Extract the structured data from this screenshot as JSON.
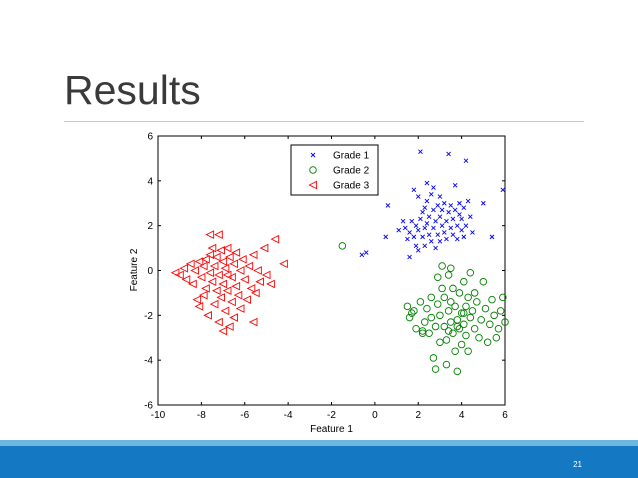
{
  "slide": {
    "title": "Results",
    "page_number": "21"
  },
  "chart_data": {
    "type": "scatter",
    "title": "",
    "xlabel": "Feature 1",
    "ylabel": "Feature 2",
    "xlim": [
      -10,
      6
    ],
    "ylim": [
      -6,
      6
    ],
    "xticks": [
      "-10",
      "-8",
      "-6",
      "-4",
      "-2",
      "0",
      "2",
      "4",
      "6"
    ],
    "yticks": [
      "-6",
      "-4",
      "-2",
      "0",
      "2",
      "4",
      "6"
    ],
    "grid": false,
    "legend_position": "top-right",
    "series": [
      {
        "name": "Grade 1",
        "marker": "x",
        "color": "#0000ff",
        "points": [
          [
            -0.6,
            0.7
          ],
          [
            -0.4,
            0.8
          ],
          [
            0.5,
            1.5
          ],
          [
            0.6,
            2.9
          ],
          [
            1.1,
            1.8
          ],
          [
            1.3,
            2.2
          ],
          [
            1.4,
            1.9
          ],
          [
            1.5,
            1.4
          ],
          [
            1.6,
            1.7
          ],
          [
            1.6,
            0.6
          ],
          [
            1.7,
            2.2
          ],
          [
            1.8,
            1.5
          ],
          [
            1.8,
            3.6
          ],
          [
            1.9,
            2.0
          ],
          [
            1.9,
            1.1
          ],
          [
            2.0,
            3.3
          ],
          [
            2.0,
            1.8
          ],
          [
            2.0,
            0.9
          ],
          [
            2.1,
            2.3
          ],
          [
            2.1,
            5.3
          ],
          [
            2.2,
            2.6
          ],
          [
            2.2,
            1.5
          ],
          [
            2.3,
            2.8
          ],
          [
            2.3,
            1.9
          ],
          [
            2.3,
            1.1
          ],
          [
            2.4,
            3.1
          ],
          [
            2.4,
            2.1
          ],
          [
            2.4,
            3.9
          ],
          [
            2.5,
            1.6
          ],
          [
            2.5,
            2.4
          ],
          [
            2.6,
            3.4
          ],
          [
            2.6,
            1.3
          ],
          [
            2.7,
            2.7
          ],
          [
            2.7,
            1.9
          ],
          [
            2.7,
            3.7
          ],
          [
            2.8,
            2.2
          ],
          [
            2.8,
            1.0
          ],
          [
            2.9,
            2.9
          ],
          [
            2.9,
            1.6
          ],
          [
            3.0,
            2.4
          ],
          [
            3.0,
            3.3
          ],
          [
            3.0,
            1.3
          ],
          [
            3.1,
            2.0
          ],
          [
            3.1,
            2.7
          ],
          [
            3.2,
            1.7
          ],
          [
            3.2,
            3.0
          ],
          [
            3.3,
            2.2
          ],
          [
            3.3,
            1.4
          ],
          [
            3.4,
            2.6
          ],
          [
            3.4,
            5.2
          ],
          [
            3.5,
            1.9
          ],
          [
            3.5,
            2.9
          ],
          [
            3.6,
            2.3
          ],
          [
            3.6,
            1.6
          ],
          [
            3.7,
            2.7
          ],
          [
            3.7,
            3.8
          ],
          [
            3.8,
            2.0
          ],
          [
            3.8,
            1.4
          ],
          [
            3.9,
            2.5
          ],
          [
            3.9,
            3.0
          ],
          [
            4.0,
            1.8
          ],
          [
            4.0,
            2.3
          ],
          [
            4.1,
            2.8
          ],
          [
            4.1,
            1.5
          ],
          [
            4.2,
            4.9
          ],
          [
            4.2,
            2.0
          ],
          [
            4.3,
            3.1
          ],
          [
            4.4,
            2.4
          ],
          [
            4.5,
            1.7
          ],
          [
            5.0,
            3.0
          ],
          [
            5.4,
            1.5
          ],
          [
            5.9,
            3.6
          ]
        ]
      },
      {
        "name": "Grade 2",
        "marker": "circle",
        "color": "#008000",
        "points": [
          [
            -1.5,
            1.1
          ],
          [
            1.5,
            -1.6
          ],
          [
            1.6,
            -2.1
          ],
          [
            1.7,
            -1.9
          ],
          [
            1.9,
            -2.6
          ],
          [
            2.1,
            -1.4
          ],
          [
            2.2,
            -2.8
          ],
          [
            2.3,
            -2.3
          ],
          [
            2.4,
            -1.7
          ],
          [
            2.5,
            -2.8
          ],
          [
            2.6,
            -2.1
          ],
          [
            2.6,
            -1.2
          ],
          [
            2.7,
            -3.9
          ],
          [
            2.8,
            -2.5
          ],
          [
            2.8,
            -4.4
          ],
          [
            2.9,
            -1.5
          ],
          [
            2.9,
            -0.3
          ],
          [
            3.0,
            -3.2
          ],
          [
            3.0,
            -2.0
          ],
          [
            3.1,
            0.2
          ],
          [
            3.1,
            -0.8
          ],
          [
            3.2,
            -2.5
          ],
          [
            3.2,
            -1.2
          ],
          [
            3.3,
            -4.2
          ],
          [
            3.3,
            -3.1
          ],
          [
            3.4,
            -1.8
          ],
          [
            3.4,
            -0.2
          ],
          [
            3.5,
            -2.3
          ],
          [
            3.5,
            -1.4
          ],
          [
            3.5,
            0.1
          ],
          [
            3.6,
            -2.8
          ],
          [
            3.6,
            -0.8
          ],
          [
            3.7,
            -3.6
          ],
          [
            3.7,
            -1.6
          ],
          [
            3.8,
            -2.2
          ],
          [
            3.8,
            -4.5
          ],
          [
            3.9,
            -1.0
          ],
          [
            3.9,
            -2.6
          ],
          [
            4.0,
            -1.9
          ],
          [
            4.0,
            -3.3
          ],
          [
            4.1,
            -0.5
          ],
          [
            4.1,
            -2.4
          ],
          [
            4.2,
            -1.6
          ],
          [
            4.2,
            -2.9
          ],
          [
            4.3,
            -3.6
          ],
          [
            4.3,
            -1.2
          ],
          [
            4.4,
            -2.1
          ],
          [
            4.4,
            -0.1
          ],
          [
            4.5,
            -1.8
          ],
          [
            4.6,
            -2.6
          ],
          [
            4.7,
            -1.4
          ],
          [
            4.8,
            -3.0
          ],
          [
            4.9,
            -2.2
          ],
          [
            5.0,
            -0.5
          ],
          [
            5.1,
            -1.7
          ],
          [
            5.2,
            -3.2
          ],
          [
            5.3,
            -2.4
          ],
          [
            5.4,
            -1.3
          ],
          [
            5.5,
            -2.0
          ],
          [
            5.6,
            -3.0
          ],
          [
            5.7,
            -2.6
          ],
          [
            5.8,
            -1.8
          ],
          [
            5.9,
            -1.2
          ],
          [
            6.0,
            -2.3
          ],
          [
            3.4,
            -2.7
          ],
          [
            3.8,
            -2.5
          ],
          [
            4.1,
            -1.9
          ],
          [
            2.2,
            -2.7
          ],
          [
            1.8,
            -1.8
          ],
          [
            4.6,
            -1.0
          ]
        ]
      },
      {
        "name": "Grade 3",
        "marker": "triangle-left",
        "color": "#ff0000",
        "points": [
          [
            -9.2,
            -0.1
          ],
          [
            -9.0,
            -0.2
          ],
          [
            -8.8,
            0.1
          ],
          [
            -8.7,
            -0.4
          ],
          [
            -8.5,
            0.3
          ],
          [
            -8.4,
            -0.6
          ],
          [
            -8.3,
            0.0
          ],
          [
            -8.2,
            -1.3
          ],
          [
            -8.1,
            0.4
          ],
          [
            -8.0,
            -0.3
          ],
          [
            -7.9,
            -1.1
          ],
          [
            -7.8,
            0.5
          ],
          [
            -7.8,
            -0.8
          ],
          [
            -7.7,
            -2.0
          ],
          [
            -7.6,
            -0.1
          ],
          [
            -7.6,
            0.7
          ],
          [
            -7.5,
            -0.5
          ],
          [
            -7.5,
            1.0
          ],
          [
            -7.4,
            -1.5
          ],
          [
            -7.4,
            0.2
          ],
          [
            -7.3,
            -0.9
          ],
          [
            -7.3,
            0.6
          ],
          [
            -7.2,
            -2.3
          ],
          [
            -7.2,
            -0.2
          ],
          [
            -7.1,
            0.9
          ],
          [
            -7.1,
            -1.2
          ],
          [
            -7.0,
            0.4
          ],
          [
            -7.0,
            -0.6
          ],
          [
            -6.9,
            -1.8
          ],
          [
            -6.9,
            0.1
          ],
          [
            -6.8,
            1.0
          ],
          [
            -6.8,
            -0.9
          ],
          [
            -6.7,
            -2.5
          ],
          [
            -6.7,
            0.6
          ],
          [
            -6.6,
            -0.3
          ],
          [
            -6.6,
            -1.4
          ],
          [
            -6.5,
            0.3
          ],
          [
            -6.5,
            -2.1
          ],
          [
            -6.4,
            -0.7
          ],
          [
            -6.4,
            0.8
          ],
          [
            -6.3,
            -1.1
          ],
          [
            -6.2,
            0.0
          ],
          [
            -6.2,
            -1.7
          ],
          [
            -6.1,
            0.5
          ],
          [
            -6.0,
            -0.4
          ],
          [
            -5.9,
            -1.3
          ],
          [
            -5.8,
            0.2
          ],
          [
            -5.7,
            -0.8
          ],
          [
            -5.6,
            0.7
          ],
          [
            -5.5,
            -1.0
          ],
          [
            -5.4,
            0.0
          ],
          [
            -5.3,
            -0.5
          ],
          [
            -5.1,
            1.0
          ],
          [
            -5.0,
            -0.2
          ],
          [
            -4.8,
            -0.6
          ],
          [
            -4.6,
            1.4
          ],
          [
            -4.2,
            0.3
          ],
          [
            -7.6,
            1.6
          ],
          [
            -7.2,
            1.6
          ],
          [
            -8.1,
            -1.6
          ],
          [
            -7.0,
            -2.7
          ],
          [
            -5.6,
            -2.3
          ],
          [
            -6.8,
            -0.2
          ],
          [
            -7.9,
            0.2
          ]
        ]
      }
    ]
  }
}
